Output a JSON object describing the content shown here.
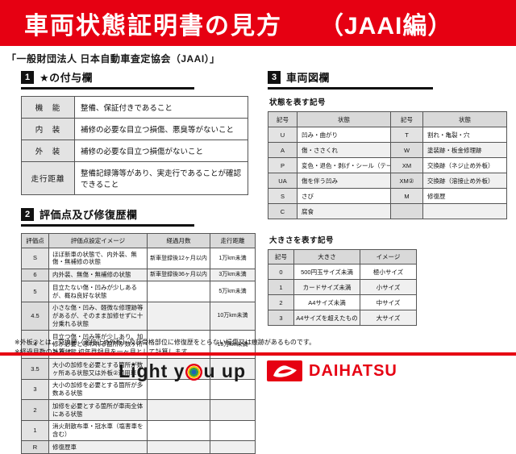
{
  "colors": {
    "accent_red": "#e60012",
    "header_gray": "#d9d9d9",
    "symbol_cell_gray": "#e3e3e3",
    "section_box_black": "#111111"
  },
  "banner": {
    "title": "車両状態証明書の見方",
    "edition": "（JAAI編）"
  },
  "subtitle": "「一般財団法人 日本自動車査定協会（JAAI）」",
  "section1": {
    "number": "1",
    "title": "★の付与欄",
    "rows": [
      [
        "機　能",
        "整備、保証付きであること"
      ],
      [
        "内　装",
        "補修の必要な目立つ損傷、悪臭等がないこと"
      ],
      [
        "外　装",
        "補修の必要な目立つ損傷がないこと"
      ],
      [
        "走行距離",
        "整備記録簿等があり、実走行であることが確認できること"
      ]
    ]
  },
  "section2": {
    "number": "2",
    "title": "評価点及び修復歴欄",
    "headers": [
      "評価点",
      "評価点設定イメージ",
      "経過月数",
      "走行距離"
    ],
    "rows": [
      [
        "S",
        "ほぼ新車の状態で、内外装、無傷・無補修の状態",
        "新車登録後12ヶ月以内",
        "1万km未満"
      ],
      [
        "6",
        "内外装、無傷・無補修の状態",
        "新車登録後36ヶ月以内",
        "3万km未満"
      ],
      [
        "5",
        "目立たない傷・凹みが少しあるが、概ね良好な状態",
        "",
        "5万km未満"
      ],
      [
        "4.5",
        "小さな傷・凹み、軽微な修理跡等があるが、そのまま加修せずに十分乗れる状態",
        "",
        "10万km未満"
      ],
      [
        "4",
        "目立つ傷・凹み等が少しあり、加修が必要と思われる箇所が数ヶ所ある状態",
        "",
        "15万km未満"
      ],
      [
        "3.5",
        "大小の加修を必要とする箇所が数ヶ所ある状態又は外板②適用車",
        "",
        ""
      ],
      [
        "3",
        "大小の加修を必要とする箇所が多数ある状態",
        "",
        ""
      ],
      [
        "2",
        "加修を必要とする箇所が車両全体にある状態",
        "",
        ""
      ],
      [
        "1",
        "消火剤散布車・冠水車（塩害車を含む）",
        "",
        ""
      ],
      [
        "R",
        "修復歴車",
        "",
        ""
      ]
    ]
  },
  "section3": {
    "number": "3",
    "title": "車両図欄",
    "state_label": "状態を表す記号",
    "state_headers": [
      "記号",
      "状態",
      "記号",
      "状態"
    ],
    "state_rows": [
      [
        "U",
        "凹み・曲がり",
        "T",
        "割れ・亀裂・穴"
      ],
      [
        "A",
        "傷・ささくれ",
        "W",
        "塗装跡・板金修理跡"
      ],
      [
        "P",
        "変色・退色・剥げ・シール（テープ）跡",
        "XM",
        "交換跡（ネジ止め外板）"
      ],
      [
        "UA",
        "傷を伴う凹み",
        "XM②",
        "交換跡（溶接止め外板）"
      ],
      [
        "S",
        "さび",
        "M",
        "修復歴"
      ],
      [
        "C",
        "腐食",
        "",
        ""
      ]
    ],
    "size_label": "大きさを表す記号",
    "size_headers": [
      "記号",
      "大きさ",
      "イメージ"
    ],
    "size_rows": [
      [
        "0",
        "500円玉サイズ未満",
        "極小サイズ"
      ],
      [
        "1",
        "カードサイズ未満",
        "小サイズ"
      ],
      [
        "2",
        "A4サイズ未満",
        "中サイズ"
      ],
      [
        "3",
        "A4サイズを超えたもの",
        "大サイズ"
      ]
    ]
  },
  "footnotes": [
    "※外板②とは、交換跡（溶接止め外板）及び骨格部位に修復歴をとらない損傷又は痕跡があるものです。",
    "※経過月数の計算は、初年登録月を一ヶ月として計算します。"
  ],
  "footer": {
    "slogan_pre": "Light y",
    "slogan_post": "u up",
    "brand": "DAIHATSU"
  }
}
